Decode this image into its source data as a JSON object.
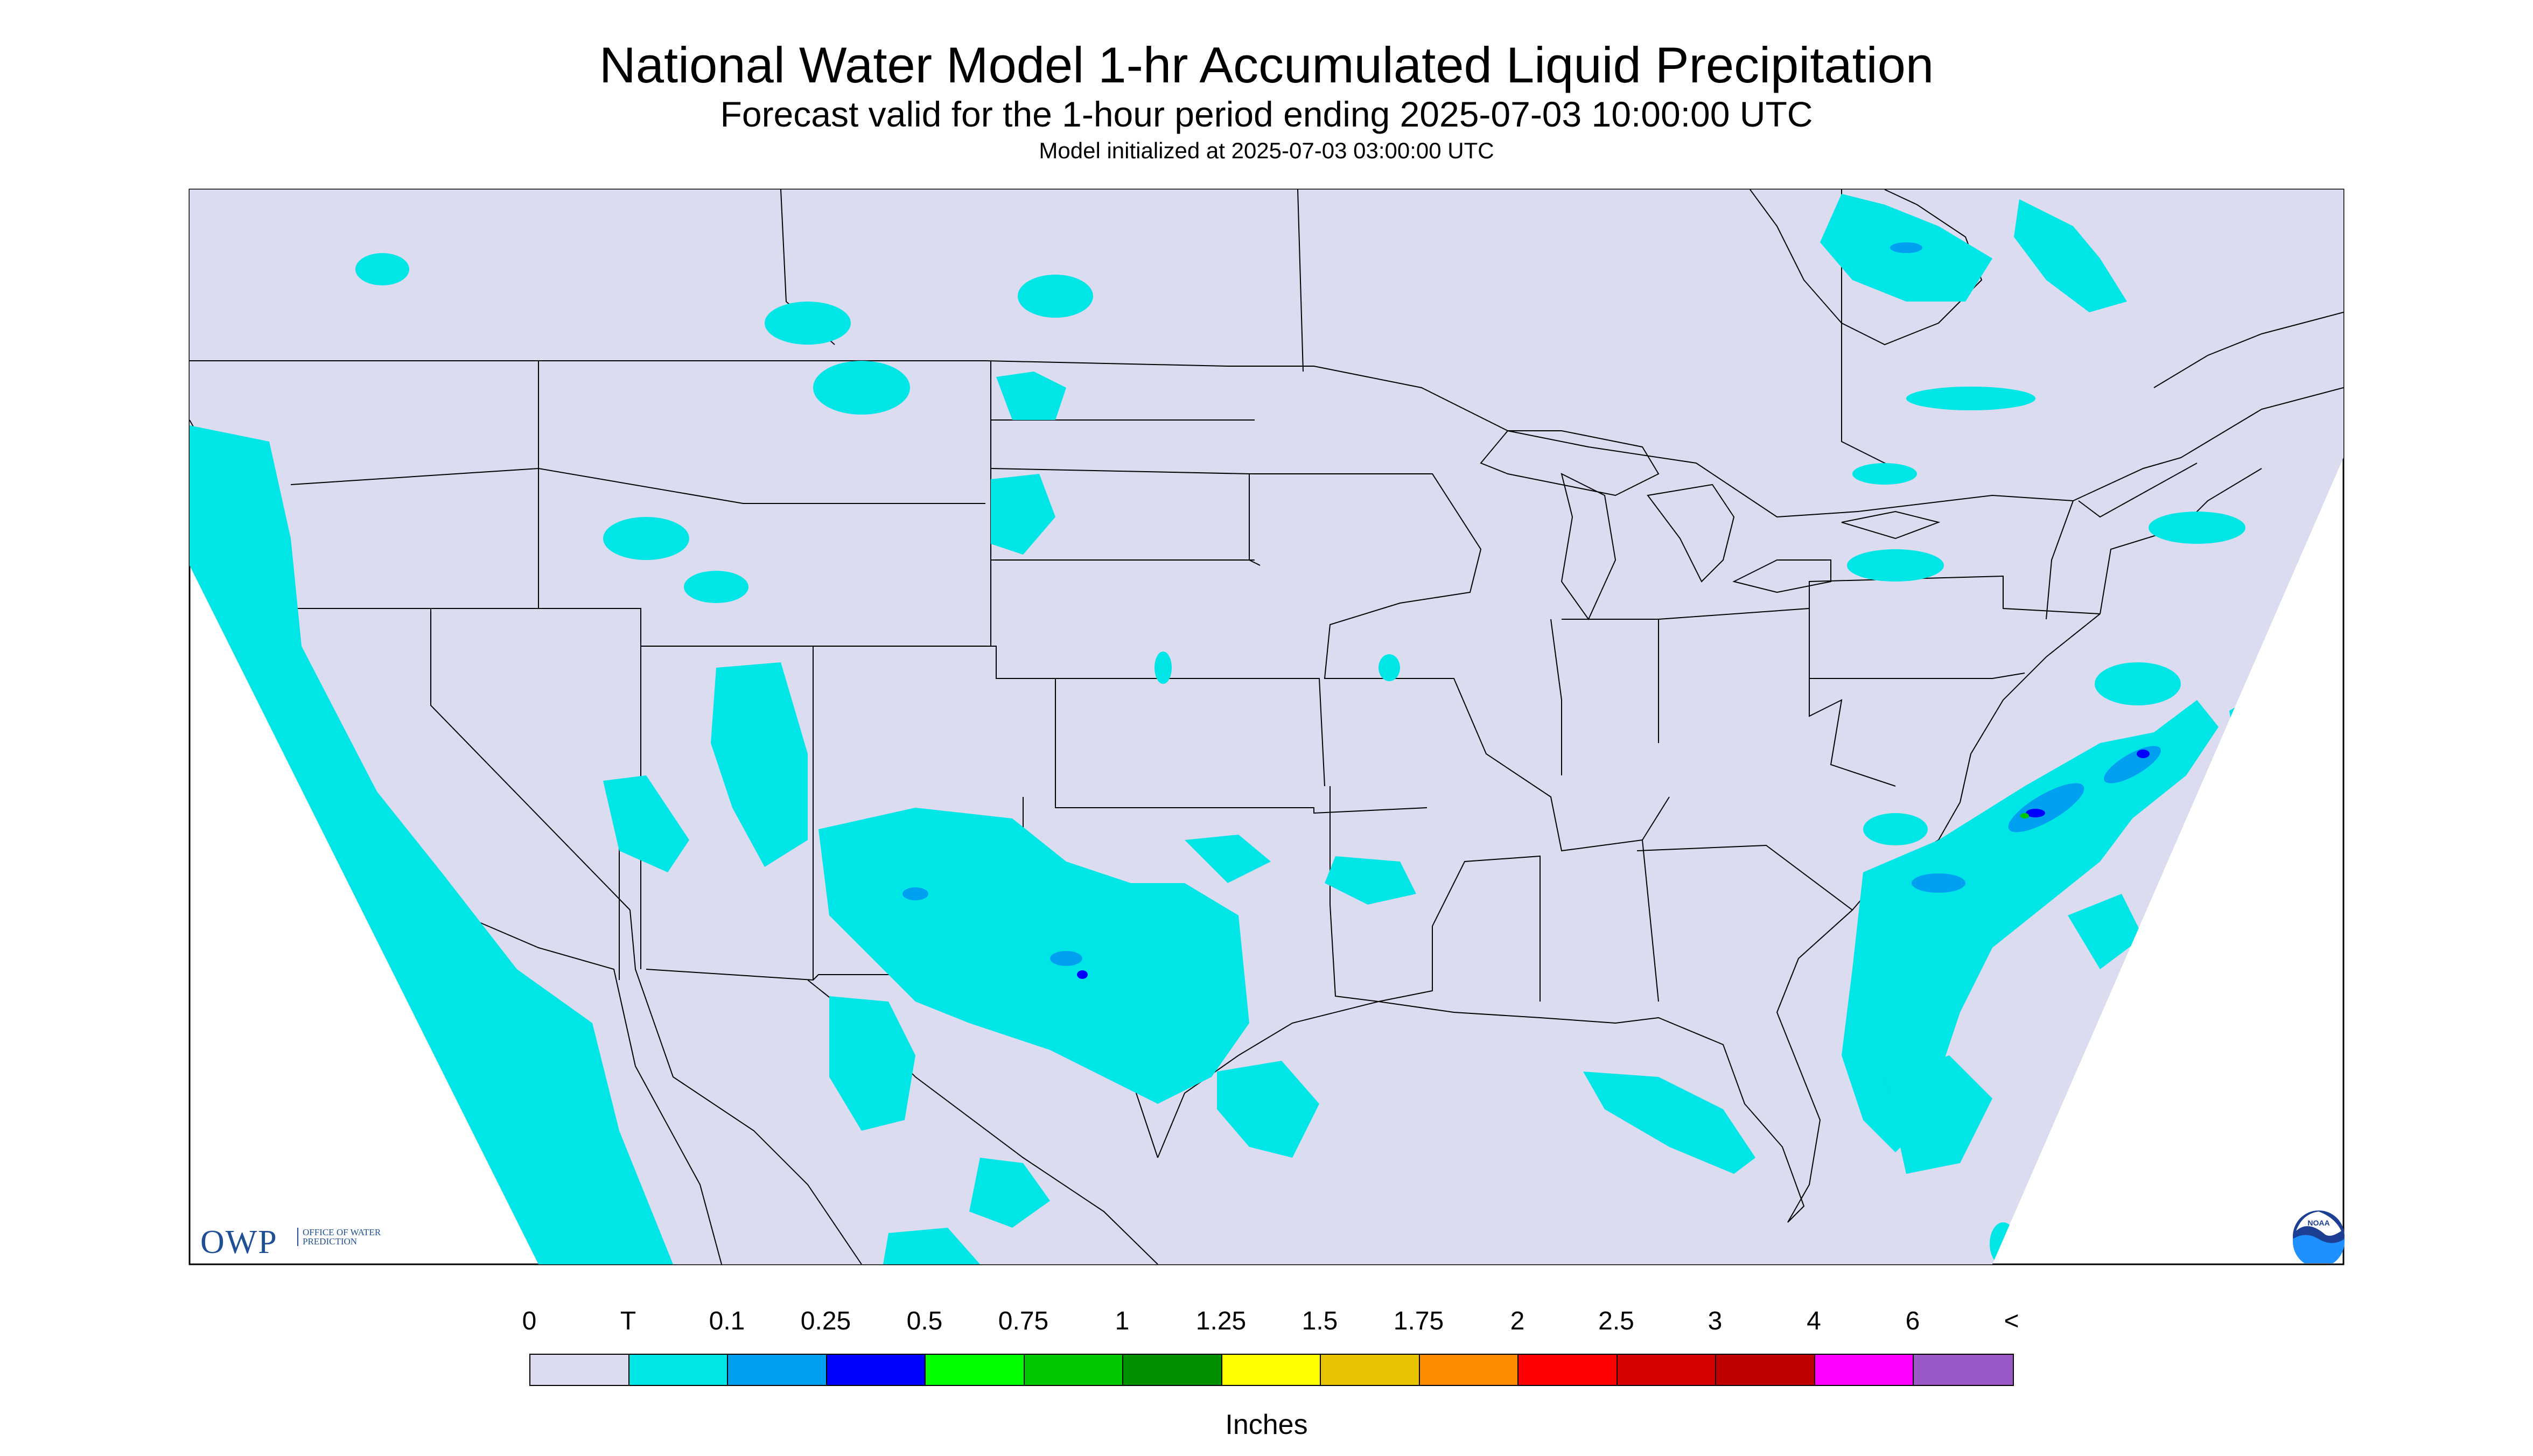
{
  "header": {
    "title": "National Water Model 1-hr Accumulated Liquid Precipitation",
    "subtitle": "Forecast valid for the 1-hour period ending 2025-07-03 10:00:00 UTC",
    "init": "Model initialized at 2025-07-03 03:00:00 UTC"
  },
  "map": {
    "background_color": "#dcdcf0",
    "outside_color": "#ffffff",
    "boundary_color": "#000000",
    "precip_light_color": "#00e5e6",
    "precip_mid_color": "#00a0f0",
    "precip_heavy_color": "#0000ff",
    "precip_green_color": "#00c800",
    "precip_regions": [
      "Pacific Northwest coast",
      "Northern Rockies",
      "Four Corners and Southwest",
      "Texas and northern Mexico",
      "Southeast Atlantic offshore",
      "Gulf of Mexico near Florida",
      "Hudson Bay area",
      "Pacific offshore west of Baja California"
    ]
  },
  "logos": {
    "owp_text": "OWP",
    "owp_subtext": "OFFICE OF WATER PREDICTION",
    "noaa_text": "NOAA",
    "noaa_icon": "noaa-logo-icon"
  },
  "legend": {
    "labels": [
      "0",
      "T",
      "0.1",
      "0.25",
      "0.5",
      "0.75",
      "1",
      "1.25",
      "1.5",
      "1.75",
      "2",
      "2.5",
      "3",
      "4",
      "6",
      "<"
    ],
    "colors": [
      "#dcdcf0",
      "#00e5e6",
      "#00a0f0",
      "#0000ff",
      "#00ff00",
      "#00c800",
      "#009000",
      "#ffff00",
      "#e6c300",
      "#ff8c00",
      "#ff0000",
      "#d60000",
      "#c00000",
      "#ff00ff",
      "#9b59c7"
    ],
    "units": "Inches"
  }
}
